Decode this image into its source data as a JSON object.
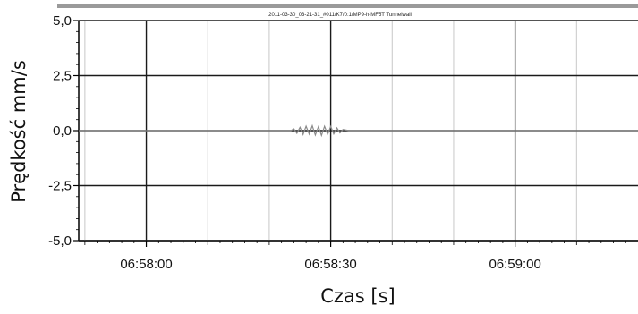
{
  "chart_data": {
    "type": "line",
    "title": "2011-03-30_03-21-31_#011/K7/0:1/MP9-h-MF5T Tunnelwall",
    "xlabel": "Czas [s]",
    "ylabel": "Prędkość mm/s",
    "ylim": [
      -5.0,
      5.0
    ],
    "yticks": [
      "5,0",
      "2,5",
      "0,0",
      "-2,5",
      "-5,0"
    ],
    "ytick_values": [
      5.0,
      2.5,
      0.0,
      -2.5,
      -5.0
    ],
    "xlim_seconds": [
      -11,
      80
    ],
    "xticks": [
      "06:58:00",
      "06:58:30",
      "06:59:00"
    ],
    "xtick_values_seconds": [
      0,
      30,
      60
    ],
    "grid": true,
    "series": [
      {
        "x_seconds": [
          -11,
          0,
          10,
          20,
          23.5,
          24,
          24.5,
          25,
          25.5,
          26,
          26.5,
          27,
          27.5,
          28,
          28.5,
          29,
          29.5,
          30,
          30.5,
          31,
          31.5,
          32,
          33,
          40,
          50,
          60,
          70,
          80
        ],
        "values": [
          0,
          0,
          0,
          0,
          0,
          0.08,
          -0.12,
          0.15,
          -0.18,
          0.2,
          -0.16,
          0.22,
          -0.2,
          0.18,
          -0.22,
          0.2,
          -0.17,
          0.19,
          -0.15,
          0.12,
          -0.1,
          0.05,
          0,
          0,
          0,
          0,
          0,
          0
        ],
        "color": "#8a8a8a"
      }
    ]
  }
}
